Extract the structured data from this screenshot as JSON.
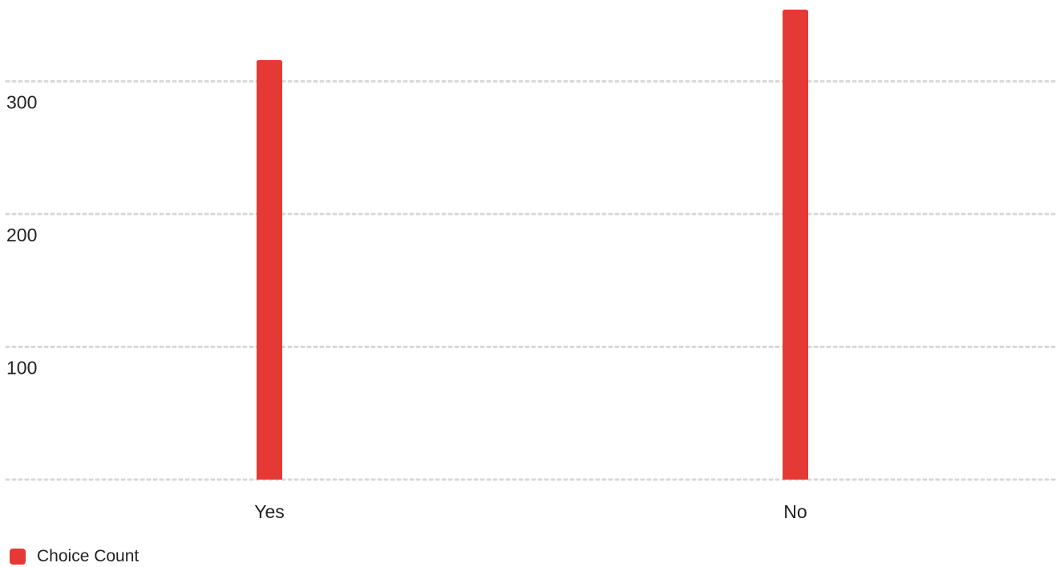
{
  "chart_data": {
    "type": "bar",
    "categories": [
      "Yes",
      "No"
    ],
    "series": [
      {
        "name": "Choice Count",
        "values": [
          316,
          354
        ],
        "color": "#e53935"
      }
    ],
    "ylim": [
      0,
      354
    ],
    "yticks": [
      "100",
      "200",
      "300"
    ],
    "grid": true,
    "legend_placement": "bottom-left"
  }
}
